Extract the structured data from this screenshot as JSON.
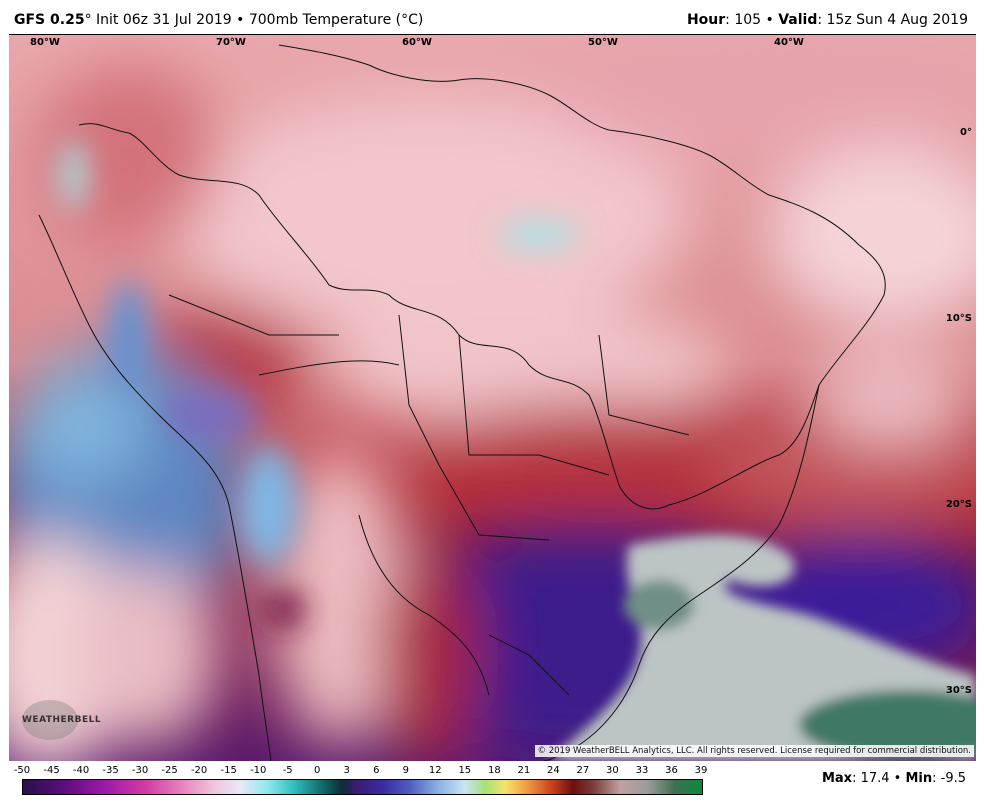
{
  "header": {
    "model": "GFS 0.25",
    "deg": "°",
    "init": " Init 06z 31 Jul 2019 • 700mb Temperature (°C)",
    "hour_label": "Hour",
    "hour_value": ": 105 • ",
    "valid_label": "Valid",
    "valid_value": ": 15z Sun 4 Aug 2019"
  },
  "map": {
    "lon_labels": [
      "80°W",
      "70°W",
      "60°W",
      "50°W",
      "40°W"
    ],
    "lat_labels": [
      "0°",
      "10°S",
      "20°S",
      "30°S"
    ],
    "copyright": "© 2019 WeatherBELL Analytics, LLC. All rights reserved. License required for commercial distribution.",
    "logo_text": "WEATHERBELL"
  },
  "colorbar": {
    "ticks": [
      "-50",
      "-45",
      "-40",
      "-35",
      "-30",
      "-25",
      "-20",
      "-15",
      "-10",
      "-5",
      "0",
      "3",
      "6",
      "9",
      "12",
      "15",
      "18",
      "21",
      "24",
      "27",
      "30",
      "33",
      "36",
      "39"
    ]
  },
  "stats": {
    "max_label": "Max",
    "max_value": ": 17.4 • ",
    "min_label": "Min",
    "min_value": ": -9.5"
  }
}
